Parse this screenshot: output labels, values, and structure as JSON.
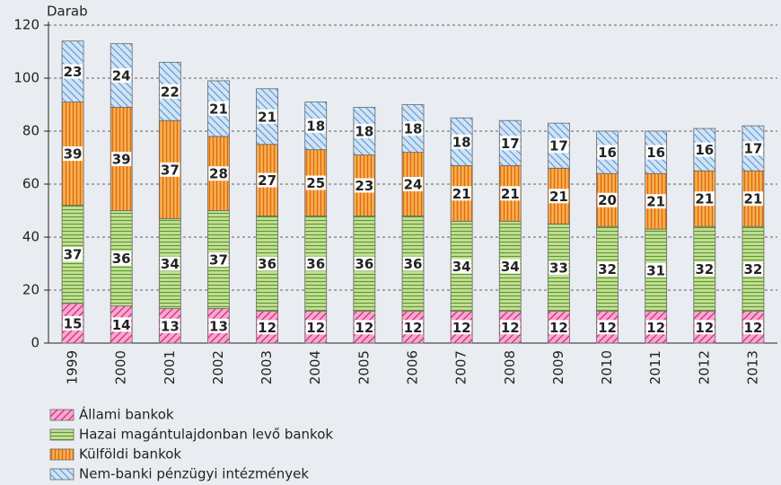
{
  "chart_data": {
    "type": "stacked_bar",
    "y_label": "Darab",
    "categories": [
      "1999",
      "2000",
      "2001",
      "2002",
      "2003",
      "2004",
      "2005",
      "2006",
      "2007",
      "2008",
      "2009",
      "2010",
      "2011",
      "2012",
      "2013"
    ],
    "series": [
      {
        "name": "Állami bankok",
        "color": "#f7a8cf",
        "hatch": "#d1247c",
        "values": [
          15,
          14,
          13,
          13,
          12,
          12,
          12,
          12,
          12,
          12,
          12,
          12,
          12,
          12,
          12
        ]
      },
      {
        "name": "Hazai magántulajdonban levő bankok",
        "color": "#c5e09a",
        "hatch": "#5f9a2a",
        "values": [
          37,
          36,
          34,
          37,
          36,
          36,
          36,
          36,
          34,
          34,
          33,
          32,
          31,
          32,
          32
        ]
      },
      {
        "name": "Külföldi bankok",
        "color": "#f9b15c",
        "hatch": "#e06c00",
        "values": [
          39,
          39,
          37,
          28,
          27,
          25,
          23,
          24,
          21,
          21,
          21,
          20,
          21,
          21,
          21
        ]
      },
      {
        "name": "Nem-banki pénzügyi intézmények",
        "color": "#cfe4f7",
        "hatch": "#5b8fc9",
        "values": [
          23,
          24,
          22,
          21,
          21,
          18,
          18,
          18,
          18,
          17,
          17,
          16,
          16,
          16,
          17
        ]
      }
    ],
    "ylim": [
      0,
      120
    ],
    "yticks": [
      0,
      20,
      40,
      60,
      80,
      100,
      120
    ],
    "grid": true
  }
}
